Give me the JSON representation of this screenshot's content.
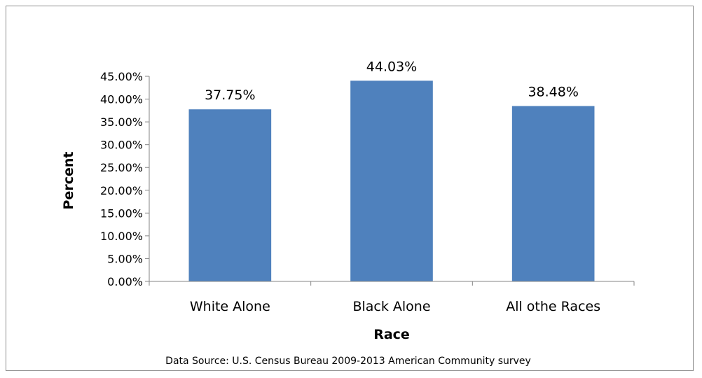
{
  "chart_data": {
    "type": "bar",
    "categories": [
      "White Alone",
      "Black Alone",
      "All othe Races"
    ],
    "values": [
      37.75,
      44.03,
      38.48
    ],
    "data_labels": [
      "37.75%",
      "44.03%",
      "38.48%"
    ],
    "title": "",
    "xlabel": "Race",
    "ylabel": "Percent",
    "ylim": [
      0,
      45
    ],
    "yticks": [
      0,
      5,
      10,
      15,
      20,
      25,
      30,
      35,
      40,
      45
    ],
    "ytick_labels": [
      "0.00%",
      "5.00%",
      "10.00%",
      "15.00%",
      "20.00%",
      "25.00%",
      "30.00%",
      "35.00%",
      "40.00%",
      "45.00%"
    ],
    "grid": false,
    "legend": "none",
    "bar_color": "#4f81bd",
    "source": "Data Source: U.S. Census Bureau 2009-2013 American Community survey"
  }
}
